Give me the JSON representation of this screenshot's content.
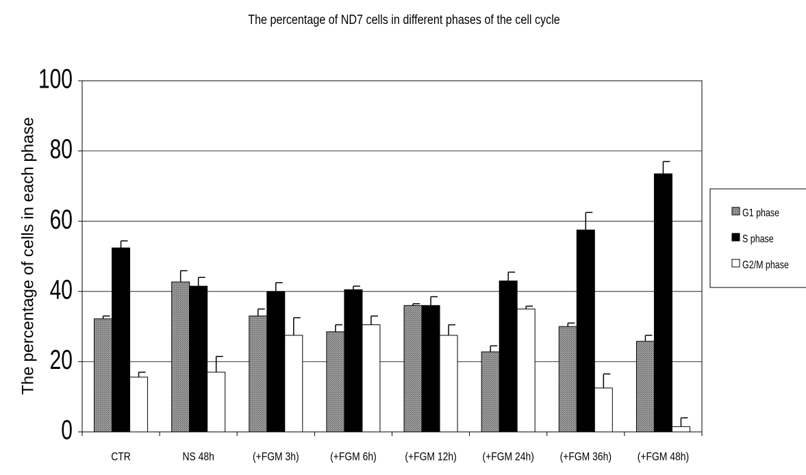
{
  "chart_data": {
    "type": "bar",
    "title": "The percentage of ND7 cells in different phases of the cell cycle",
    "y_label": "The percentage of cells in each phase",
    "categories": [
      "CTR",
      "NS 48h",
      "(+FGM 3h)",
      "(+FGM 6h)",
      "(+FGM 12h)",
      "(+FGM 24h)",
      "(+FGM 36h)",
      "(+FGM 48h)"
    ],
    "series": [
      {
        "name": "G1 phase",
        "color": "#8a8a8a",
        "values": [
          32.2,
          42.7,
          33,
          28.5,
          36,
          22.8,
          30,
          25.8
        ],
        "errors": [
          0.8,
          3.2,
          2,
          2,
          0.5,
          1.7,
          1,
          1.7
        ]
      },
      {
        "name": "S phase",
        "color": "#000000",
        "values": [
          52.4,
          41.5,
          40,
          40.5,
          36,
          43,
          57.5,
          73.5
        ],
        "errors": [
          2,
          2.5,
          2.5,
          1,
          2.5,
          2.5,
          5,
          3.5
        ]
      },
      {
        "name": "G2/M phase",
        "color": "#ffffff",
        "values": [
          15.6,
          17,
          27.5,
          30.5,
          27.5,
          35,
          12.5,
          1.5
        ],
        "errors": [
          1.4,
          4.5,
          5,
          2.5,
          3,
          0.8,
          4,
          2.5
        ]
      }
    ],
    "ylim": [
      0,
      100
    ],
    "yticks": [
      0,
      20,
      40,
      60,
      80,
      100
    ],
    "grid": true,
    "legend": "right"
  }
}
